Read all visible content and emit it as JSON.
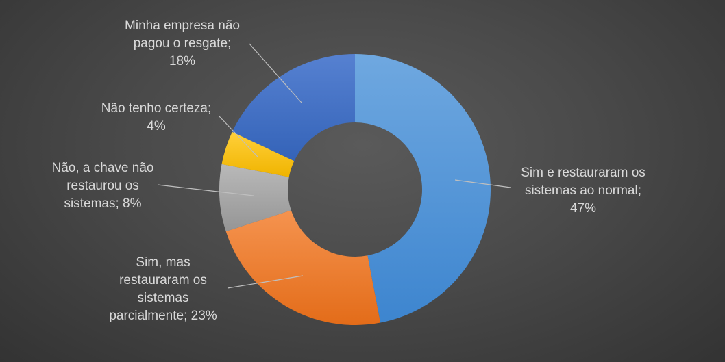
{
  "chart_data": {
    "type": "pie",
    "title": "",
    "slices": [
      {
        "label": [
          "Sim e restauraram os",
          "sistemas ao normal;",
          "47%"
        ],
        "value": 47,
        "color": "#5b9bd5"
      },
      {
        "label": [
          "Sim, mas",
          "restauraram os",
          "sistemas",
          "parcialmente; 23%"
        ],
        "value": 23,
        "color": "#ed7d31"
      },
      {
        "label": [
          "Não, a chave não",
          "restaurou os",
          "sistemas; 8%"
        ],
        "value": 8,
        "color": "#a5a5a5"
      },
      {
        "label": [
          "Não tenho certeza;",
          "4%"
        ],
        "value": 4,
        "color": "#ffc000"
      },
      {
        "label": [
          "Minha empresa não",
          "pagou o resgate;",
          "18%"
        ],
        "value": 18,
        "color": "#4472c4"
      }
    ]
  }
}
